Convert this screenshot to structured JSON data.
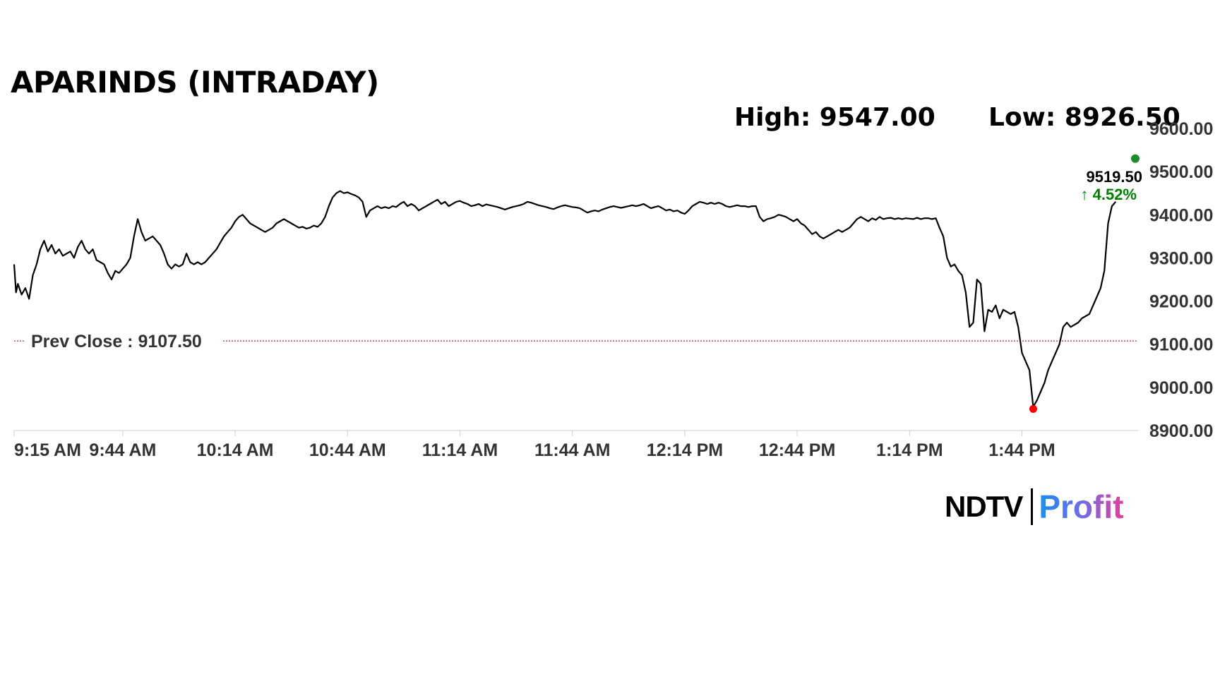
{
  "title": "APARINDS (INTRADAY)",
  "stats": {
    "high": "High: 9547.00",
    "low": "Low: 8926.50"
  },
  "brand": {
    "name": "NDTV",
    "product": "Profit"
  },
  "colors": {
    "line": "#000000",
    "prev_close": "#c62828",
    "change_up": "#008000",
    "low_marker": "#ff0000",
    "high_marker": "#1a8a2a",
    "grid": "#cccccc"
  },
  "chart_data": {
    "type": "line",
    "title": "APARINDS (INTRADAY)",
    "xlabel": "",
    "ylabel": "",
    "ylim": [
      8900,
      9600
    ],
    "y_ticks": [
      "9600.00",
      "9500.00",
      "9400.00",
      "9300.00",
      "9200.00",
      "9100.00",
      "9000.00",
      "8900.00"
    ],
    "x_ticks": [
      {
        "minute": 0,
        "label": "9:15 AM"
      },
      {
        "minute": 29,
        "label": "9:44 AM"
      },
      {
        "minute": 59,
        "label": "10:14 AM"
      },
      {
        "minute": 89,
        "label": "10:44 AM"
      },
      {
        "minute": 119,
        "label": "11:14 AM"
      },
      {
        "minute": 149,
        "label": "11:44 AM"
      },
      {
        "minute": 179,
        "label": "12:14 PM"
      },
      {
        "minute": 209,
        "label": "12:44 PM"
      },
      {
        "minute": 239,
        "label": "1:14 PM"
      },
      {
        "minute": 269,
        "label": "1:44 PM"
      }
    ],
    "x_max_minute": 300,
    "prev_close": {
      "value": 9107.5,
      "label": "Prev Close : 9107.50"
    },
    "last": {
      "value": 9519.5,
      "minute": 292,
      "label": "9519.50",
      "change": "↑ 4.52%"
    },
    "low_point": {
      "minute": 272,
      "value": 8950
    },
    "high_point": {
      "minute": 300,
      "value": 9530
    },
    "series": [
      {
        "points": [
          [
            0,
            9285
          ],
          [
            0.5,
            9220
          ],
          [
            1,
            9240
          ],
          [
            2,
            9215
          ],
          [
            3,
            9230
          ],
          [
            4,
            9205
          ],
          [
            5,
            9260
          ],
          [
            6,
            9285
          ],
          [
            7,
            9320
          ],
          [
            8,
            9340
          ],
          [
            9,
            9315
          ],
          [
            10,
            9330
          ],
          [
            11,
            9310
          ],
          [
            12,
            9320
          ],
          [
            13,
            9305
          ],
          [
            14,
            9310
          ],
          [
            15,
            9315
          ],
          [
            16,
            9300
          ],
          [
            17,
            9325
          ],
          [
            18,
            9340
          ],
          [
            19,
            9320
          ],
          [
            20,
            9310
          ],
          [
            21,
            9320
          ],
          [
            22,
            9295
          ],
          [
            23,
            9290
          ],
          [
            24,
            9285
          ],
          [
            25,
            9265
          ],
          [
            26,
            9250
          ],
          [
            27,
            9270
          ],
          [
            28,
            9265
          ],
          [
            29,
            9275
          ],
          [
            30,
            9285
          ],
          [
            31,
            9300
          ],
          [
            32,
            9350
          ],
          [
            33,
            9390
          ],
          [
            34,
            9360
          ],
          [
            35,
            9340
          ],
          [
            36,
            9345
          ],
          [
            37,
            9350
          ],
          [
            38,
            9340
          ],
          [
            39,
            9330
          ],
          [
            40,
            9310
          ],
          [
            41,
            9285
          ],
          [
            42,
            9275
          ],
          [
            43,
            9285
          ],
          [
            44,
            9280
          ],
          [
            45,
            9285
          ],
          [
            46,
            9310
          ],
          [
            47,
            9290
          ],
          [
            48,
            9285
          ],
          [
            49,
            9290
          ],
          [
            50,
            9285
          ],
          [
            51,
            9290
          ],
          [
            52,
            9300
          ],
          [
            53,
            9310
          ],
          [
            54,
            9320
          ],
          [
            55,
            9335
          ],
          [
            56,
            9350
          ],
          [
            57,
            9360
          ],
          [
            58,
            9370
          ],
          [
            59,
            9385
          ],
          [
            60,
            9395
          ],
          [
            61,
            9400
          ],
          [
            62,
            9390
          ],
          [
            63,
            9380
          ],
          [
            64,
            9375
          ],
          [
            65,
            9370
          ],
          [
            66,
            9365
          ],
          [
            67,
            9360
          ],
          [
            68,
            9365
          ],
          [
            69,
            9370
          ],
          [
            70,
            9380
          ],
          [
            71,
            9385
          ],
          [
            72,
            9390
          ],
          [
            73,
            9385
          ],
          [
            74,
            9380
          ],
          [
            75,
            9375
          ],
          [
            76,
            9370
          ],
          [
            77,
            9372
          ],
          [
            78,
            9368
          ],
          [
            79,
            9370
          ],
          [
            80,
            9375
          ],
          [
            81,
            9372
          ],
          [
            82,
            9380
          ],
          [
            83,
            9395
          ],
          [
            84,
            9420
          ],
          [
            85,
            9440
          ],
          [
            86,
            9450
          ],
          [
            87,
            9455
          ],
          [
            88,
            9450
          ],
          [
            89,
            9452
          ],
          [
            90,
            9448
          ],
          [
            91,
            9445
          ],
          [
            92,
            9440
          ],
          [
            93,
            9430
          ],
          [
            94,
            9395
          ],
          [
            95,
            9410
          ],
          [
            96,
            9415
          ],
          [
            97,
            9420
          ],
          [
            98,
            9415
          ],
          [
            99,
            9418
          ],
          [
            100,
            9415
          ],
          [
            101,
            9420
          ],
          [
            102,
            9418
          ],
          [
            103,
            9425
          ],
          [
            104,
            9430
          ],
          [
            105,
            9420
          ],
          [
            106,
            9425
          ],
          [
            107,
            9420
          ],
          [
            108,
            9410
          ],
          [
            109,
            9415
          ],
          [
            110,
            9420
          ],
          [
            111,
            9425
          ],
          [
            112,
            9430
          ],
          [
            113,
            9435
          ],
          [
            114,
            9425
          ],
          [
            115,
            9430
          ],
          [
            116,
            9420
          ],
          [
            117,
            9425
          ],
          [
            118,
            9430
          ],
          [
            119,
            9432
          ],
          [
            120,
            9428
          ],
          [
            121,
            9425
          ],
          [
            122,
            9420
          ],
          [
            123,
            9422
          ],
          [
            124,
            9425
          ],
          [
            125,
            9420
          ],
          [
            126,
            9424
          ],
          [
            127,
            9422
          ],
          [
            128,
            9420
          ],
          [
            129,
            9418
          ],
          [
            130,
            9415
          ],
          [
            131,
            9412
          ],
          [
            132,
            9415
          ],
          [
            133,
            9418
          ],
          [
            134,
            9420
          ],
          [
            135,
            9422
          ],
          [
            136,
            9425
          ],
          [
            137,
            9430
          ],
          [
            138,
            9428
          ],
          [
            139,
            9425
          ],
          [
            140,
            9422
          ],
          [
            141,
            9420
          ],
          [
            142,
            9418
          ],
          [
            143,
            9415
          ],
          [
            144,
            9413
          ],
          [
            145,
            9417
          ],
          [
            146,
            9420
          ],
          [
            147,
            9422
          ],
          [
            148,
            9420
          ],
          [
            149,
            9418
          ],
          [
            150,
            9417
          ],
          [
            151,
            9415
          ],
          [
            152,
            9410
          ],
          [
            153,
            9405
          ],
          [
            154,
            9408
          ],
          [
            155,
            9410
          ],
          [
            156,
            9408
          ],
          [
            157,
            9412
          ],
          [
            158,
            9415
          ],
          [
            159,
            9418
          ],
          [
            160,
            9420
          ],
          [
            161,
            9418
          ],
          [
            162,
            9416
          ],
          [
            163,
            9418
          ],
          [
            164,
            9420
          ],
          [
            165,
            9422
          ],
          [
            166,
            9420
          ],
          [
            167,
            9422
          ],
          [
            168,
            9425
          ],
          [
            169,
            9420
          ],
          [
            170,
            9415
          ],
          [
            171,
            9418
          ],
          [
            172,
            9420
          ],
          [
            173,
            9415
          ],
          [
            174,
            9410
          ],
          [
            175,
            9412
          ],
          [
            176,
            9408
          ],
          [
            177,
            9410
          ],
          [
            178,
            9405
          ],
          [
            179,
            9402
          ],
          [
            180,
            9410
          ],
          [
            181,
            9420
          ],
          [
            182,
            9425
          ],
          [
            183,
            9430
          ],
          [
            184,
            9428
          ],
          [
            185,
            9425
          ],
          [
            186,
            9428
          ],
          [
            187,
            9425
          ],
          [
            188,
            9428
          ],
          [
            189,
            9425
          ],
          [
            190,
            9420
          ],
          [
            191,
            9418
          ],
          [
            192,
            9420
          ],
          [
            193,
            9422
          ],
          [
            194,
            9420
          ],
          [
            195,
            9420
          ],
          [
            196,
            9418
          ],
          [
            197,
            9420
          ],
          [
            198,
            9420
          ],
          [
            199,
            9395
          ],
          [
            200,
            9385
          ],
          [
            201,
            9390
          ],
          [
            202,
            9392
          ],
          [
            203,
            9395
          ],
          [
            204,
            9400
          ],
          [
            205,
            9398
          ],
          [
            206,
            9395
          ],
          [
            207,
            9390
          ],
          [
            208,
            9385
          ],
          [
            209,
            9390
          ],
          [
            210,
            9380
          ],
          [
            211,
            9375
          ],
          [
            212,
            9365
          ],
          [
            213,
            9355
          ],
          [
            214,
            9360
          ],
          [
            215,
            9350
          ],
          [
            216,
            9345
          ],
          [
            217,
            9350
          ],
          [
            218,
            9355
          ],
          [
            219,
            9360
          ],
          [
            220,
            9365
          ],
          [
            221,
            9360
          ],
          [
            222,
            9365
          ],
          [
            223,
            9370
          ],
          [
            224,
            9380
          ],
          [
            225,
            9390
          ],
          [
            226,
            9395
          ],
          [
            227,
            9390
          ],
          [
            228,
            9385
          ],
          [
            229,
            9392
          ],
          [
            230,
            9388
          ],
          [
            231,
            9395
          ],
          [
            232,
            9390
          ],
          [
            233,
            9392
          ],
          [
            234,
            9393
          ],
          [
            235,
            9390
          ],
          [
            236,
            9392
          ],
          [
            237,
            9390
          ],
          [
            238,
            9392
          ],
          [
            239,
            9391
          ],
          [
            240,
            9390
          ],
          [
            241,
            9393
          ],
          [
            242,
            9390
          ],
          [
            243,
            9392
          ],
          [
            244,
            9392
          ],
          [
            245,
            9390
          ],
          [
            246,
            9392
          ],
          [
            247,
            9370
          ],
          [
            248,
            9350
          ],
          [
            249,
            9300
          ],
          [
            250,
            9280
          ],
          [
            251,
            9285
          ],
          [
            252,
            9270
          ],
          [
            253,
            9260
          ],
          [
            254,
            9220
          ],
          [
            255,
            9140
          ],
          [
            256,
            9150
          ],
          [
            257,
            9250
          ],
          [
            258,
            9240
          ],
          [
            259,
            9130
          ],
          [
            260,
            9180
          ],
          [
            261,
            9175
          ],
          [
            262,
            9190
          ],
          [
            263,
            9160
          ],
          [
            264,
            9180
          ],
          [
            265,
            9175
          ],
          [
            266,
            9170
          ],
          [
            267,
            9175
          ],
          [
            268,
            9140
          ],
          [
            269,
            9080
          ],
          [
            270,
            9060
          ],
          [
            271,
            9040
          ],
          [
            272,
            8955
          ],
          [
            273,
            8970
          ],
          [
            274,
            8990
          ],
          [
            275,
            9010
          ],
          [
            276,
            9040
          ],
          [
            277,
            9060
          ],
          [
            278,
            9080
          ],
          [
            279,
            9100
          ],
          [
            280,
            9140
          ],
          [
            281,
            9150
          ],
          [
            282,
            9140
          ],
          [
            283,
            9145
          ],
          [
            284,
            9150
          ],
          [
            285,
            9160
          ],
          [
            286,
            9165
          ],
          [
            287,
            9170
          ],
          [
            288,
            9190
          ],
          [
            289,
            9210
          ],
          [
            290,
            9230
          ],
          [
            291,
            9270
          ],
          [
            292,
            9380
          ],
          [
            293,
            9420
          ],
          [
            294,
            9430
          ]
        ]
      }
    ]
  }
}
